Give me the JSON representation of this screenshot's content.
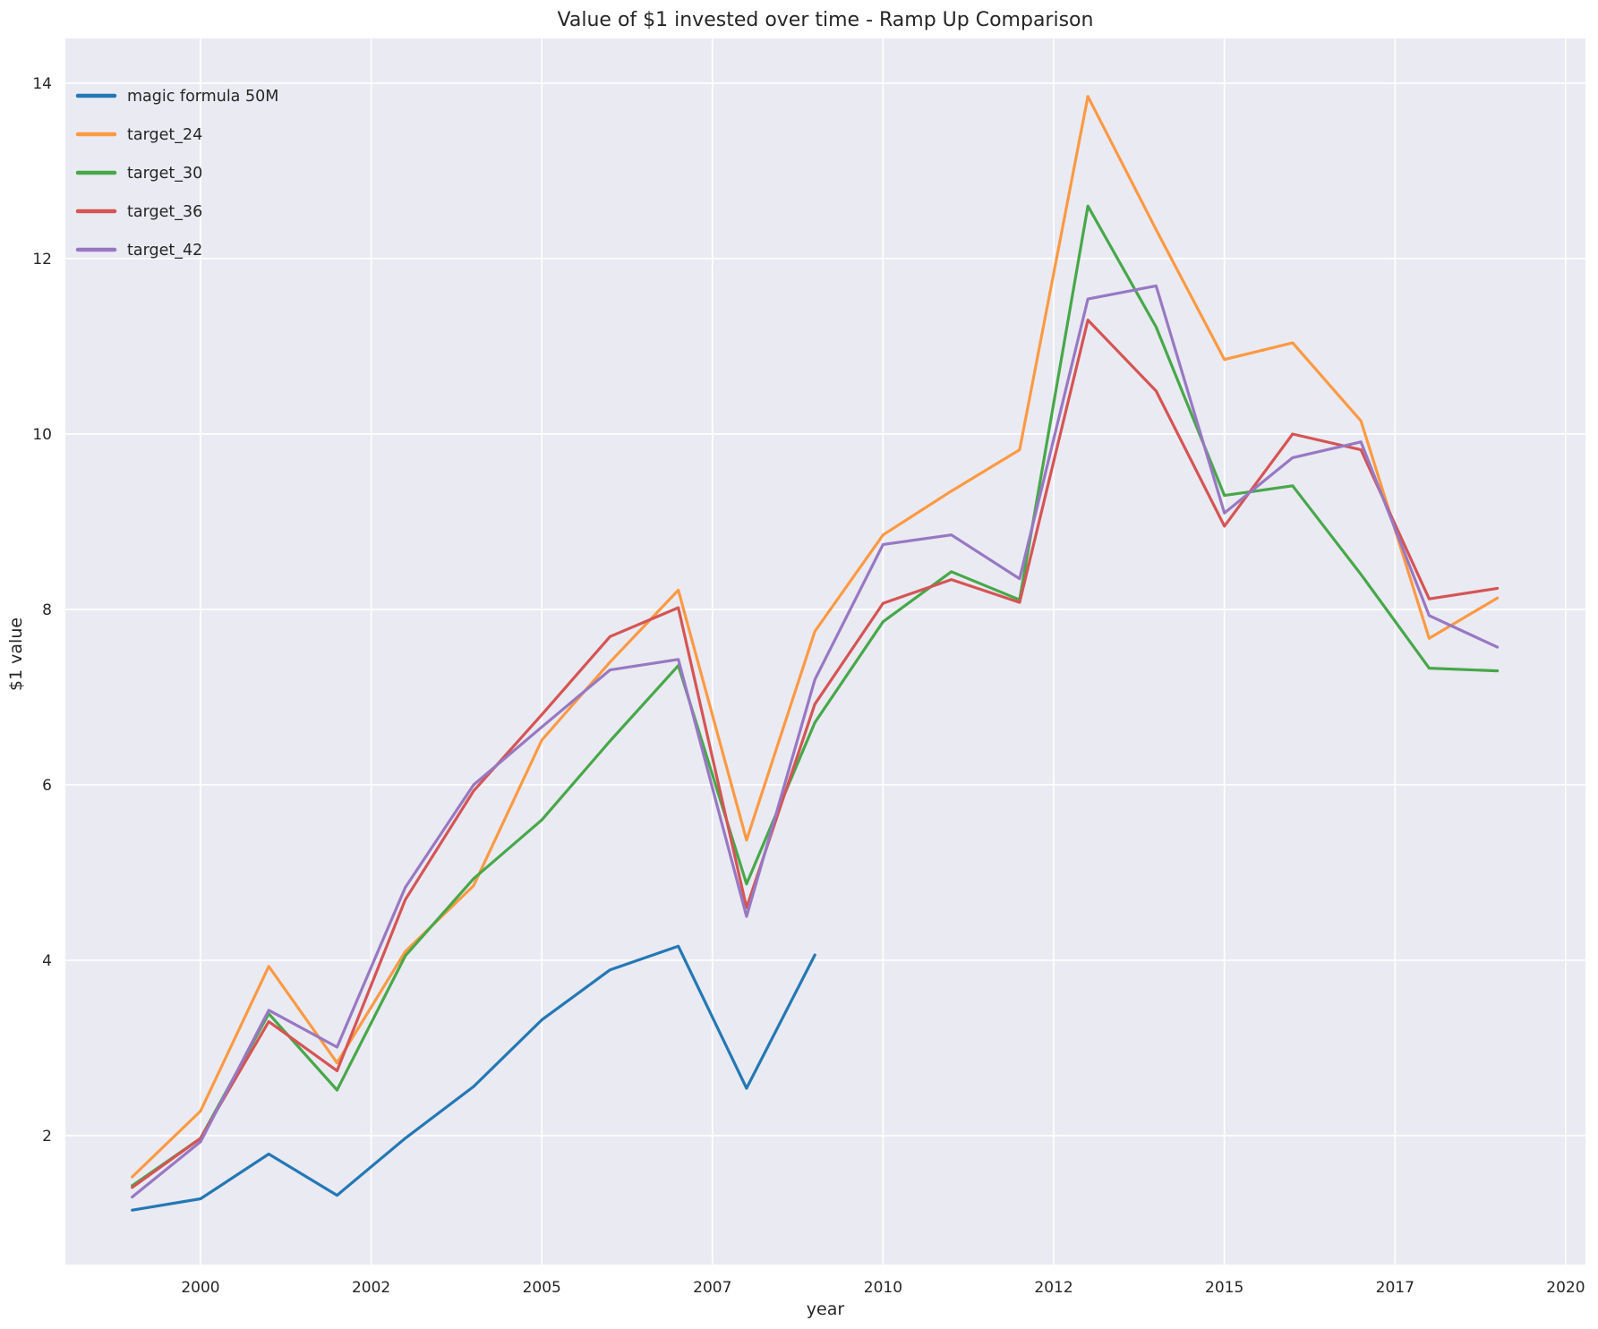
{
  "title": "Value of $1 invested over time - Ramp Up Comparison",
  "xlabel": "year",
  "ylabel": "$1 value",
  "style": {
    "axes_background": "#eaeaf2",
    "grid_color": "#ffffff",
    "text_color": "#262626",
    "line_width": 3.2
  },
  "chart_data": {
    "type": "line",
    "title": "Value of $1 invested over time - Ramp Up Comparison",
    "xlabel": "year",
    "ylabel": "$1 value",
    "grid": true,
    "legend_position": "upper left",
    "xlim": [
      1998.02,
      2020.29
    ],
    "ylim": [
      0.53,
      14.51
    ],
    "x_tick_positions": [
      2000,
      2002.5,
      2005,
      2007.5,
      2010,
      2012.5,
      2015,
      2017.5,
      2020
    ],
    "x_tick_labels": [
      "2000",
      "2002",
      "2005",
      "2007",
      "2010",
      "2012",
      "2015",
      "2017",
      "2020"
    ],
    "y_tick_positions": [
      2,
      4,
      6,
      8,
      10,
      12,
      14
    ],
    "y_tick_labels": [
      "2",
      "4",
      "6",
      "8",
      "10",
      "12",
      "14"
    ],
    "series": [
      {
        "name": "magic formula 50M",
        "color": "#2478b4",
        "x": [
          1999,
          2000,
          2001,
          2002,
          2003,
          2004,
          2005,
          2006,
          2007,
          2008,
          2009
        ],
        "values": [
          1.15,
          1.28,
          1.79,
          1.32,
          1.97,
          2.56,
          3.32,
          3.89,
          4.16,
          2.54,
          4.06
        ]
      },
      {
        "name": "target_24",
        "color": "#fb9a42",
        "x": [
          1999,
          2000,
          2001,
          2002,
          2003,
          2004,
          2005,
          2006,
          2007,
          2008,
          2009,
          2010,
          2011,
          2012,
          2013,
          2014,
          2015,
          2016,
          2017,
          2018,
          2019
        ],
        "values": [
          1.53,
          2.28,
          3.93,
          2.83,
          4.1,
          4.85,
          6.51,
          7.4,
          8.22,
          5.37,
          7.75,
          8.85,
          9.35,
          9.82,
          13.85,
          12.33,
          10.85,
          11.04,
          10.15,
          7.67,
          8.13
        ]
      },
      {
        "name": "target_30",
        "color": "#47a84a",
        "x": [
          1999,
          2000,
          2001,
          2002,
          2003,
          2004,
          2005,
          2006,
          2007,
          2008,
          2009,
          2010,
          2011,
          2012,
          2013,
          2014,
          2015,
          2016,
          2017,
          2018,
          2019
        ],
        "values": [
          1.43,
          1.97,
          3.39,
          2.52,
          4.05,
          4.93,
          5.6,
          6.5,
          7.36,
          4.87,
          6.71,
          7.86,
          8.43,
          8.11,
          12.6,
          11.22,
          9.3,
          9.41,
          8.4,
          7.33,
          7.3
        ]
      },
      {
        "name": "target_36",
        "color": "#d55454",
        "x": [
          1999,
          2000,
          2001,
          2002,
          2003,
          2004,
          2005,
          2006,
          2007,
          2008,
          2009,
          2010,
          2011,
          2012,
          2013,
          2014,
          2015,
          2016,
          2017,
          2018,
          2019
        ],
        "values": [
          1.41,
          1.97,
          3.3,
          2.74,
          4.69,
          5.93,
          6.8,
          7.69,
          8.02,
          4.6,
          6.92,
          8.07,
          8.34,
          8.08,
          11.3,
          10.49,
          8.95,
          10.0,
          9.82,
          8.12,
          8.24
        ]
      },
      {
        "name": "target_42",
        "color": "#9878c3",
        "x": [
          1999,
          2000,
          2001,
          2002,
          2003,
          2004,
          2005,
          2006,
          2007,
          2008,
          2009,
          2010,
          2011,
          2012,
          2013,
          2014,
          2015,
          2016,
          2017,
          2018,
          2019
        ],
        "values": [
          1.3,
          1.93,
          3.43,
          3.01,
          4.83,
          6.0,
          6.66,
          7.31,
          7.43,
          4.5,
          7.2,
          8.74,
          8.85,
          8.35,
          11.54,
          11.69,
          9.1,
          9.73,
          9.91,
          7.93,
          7.57
        ]
      }
    ]
  }
}
